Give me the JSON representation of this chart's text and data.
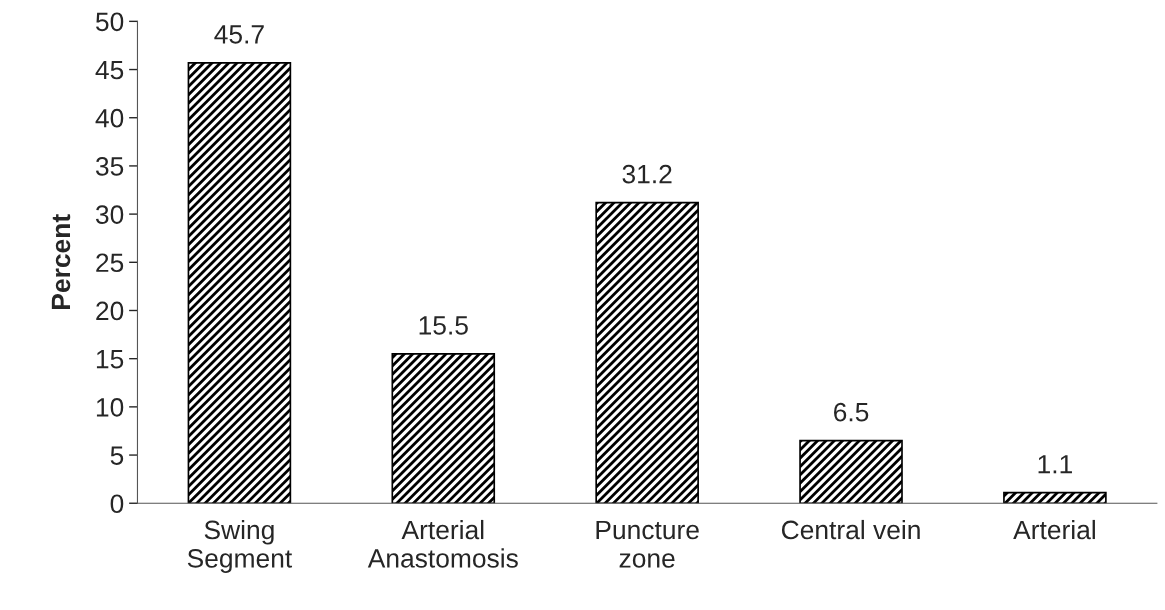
{
  "chart_data": {
    "type": "bar",
    "ylabel": "Percent",
    "categories": [
      "Swing\nSegment",
      "Arterial\nAnastomosis",
      "Puncture\nzone",
      "Central vein",
      "Arterial"
    ],
    "values": [
      45.7,
      15.5,
      31.2,
      6.5,
      1.1
    ],
    "color": "#000000",
    "ylim": [
      0,
      50
    ],
    "yticks": [
      0,
      5,
      10,
      15,
      20,
      25,
      30,
      35,
      40,
      45,
      50
    ],
    "data_labels": true,
    "grid": false,
    "legend": false
  }
}
